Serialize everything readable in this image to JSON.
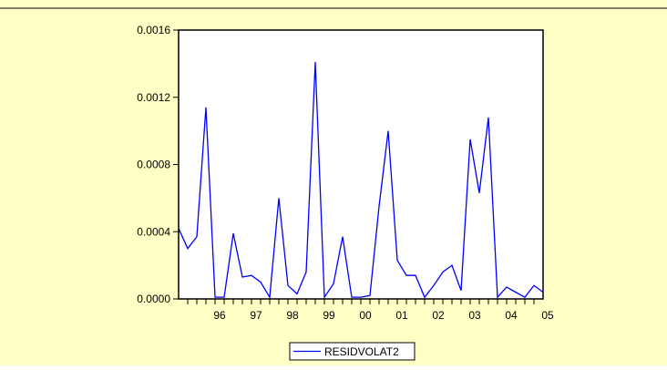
{
  "colors": {
    "page_background": "#FFFFC6",
    "plot_background": "#FFFFFF",
    "series_line": "#0000FF",
    "axis": "#000000",
    "top_rule": "#000000"
  },
  "chart_data": {
    "type": "line",
    "title": "",
    "xlabel": "",
    "ylabel": "",
    "ylim": [
      0,
      0.0016
    ],
    "xlim": [
      "1995Q2",
      "2005Q2"
    ],
    "grid": false,
    "legend_position": "bottom-center",
    "y_ticks": [
      "0.0000",
      "0.0004",
      "0.0008",
      "0.0012",
      "0.0016"
    ],
    "x_ticks": [
      "96",
      "97",
      "98",
      "99",
      "00",
      "01",
      "02",
      "03",
      "04",
      "05"
    ],
    "series": [
      {
        "name": "RESIDVOLAT2",
        "color": "#0000FF",
        "x": [
          "1995Q2",
          "1995Q3",
          "1995Q4",
          "1996Q1",
          "1996Q2",
          "1996Q3",
          "1996Q4",
          "1997Q1",
          "1997Q2",
          "1997Q3",
          "1997Q4",
          "1998Q1",
          "1998Q2",
          "1998Q3",
          "1998Q4",
          "1999Q1",
          "1999Q2",
          "1999Q3",
          "1999Q4",
          "2000Q1",
          "2000Q2",
          "2000Q3",
          "2000Q4",
          "2001Q1",
          "2001Q2",
          "2001Q3",
          "2001Q4",
          "2002Q1",
          "2002Q2",
          "2002Q3",
          "2002Q4",
          "2003Q1",
          "2003Q2",
          "2003Q3",
          "2003Q4",
          "2004Q1",
          "2004Q2",
          "2004Q3",
          "2004Q4",
          "2005Q1",
          "2005Q2"
        ],
        "values": [
          0.00042,
          0.0003,
          0.00037,
          0.00114,
          1e-05,
          1e-05,
          0.00039,
          0.00013,
          0.00014,
          0.0001,
          1e-05,
          0.0006,
          8e-05,
          3e-05,
          0.00016,
          0.00141,
          1e-05,
          9e-05,
          0.00037,
          1e-05,
          1e-05,
          2e-05,
          0.00055,
          0.001,
          0.00023,
          0.00014,
          0.00014,
          1e-05,
          8e-05,
          0.00016,
          0.0002,
          5e-05,
          0.00095,
          0.00063,
          0.00108,
          1e-05,
          7e-05,
          4e-05,
          1e-05,
          8e-05,
          4e-05
        ]
      }
    ]
  }
}
